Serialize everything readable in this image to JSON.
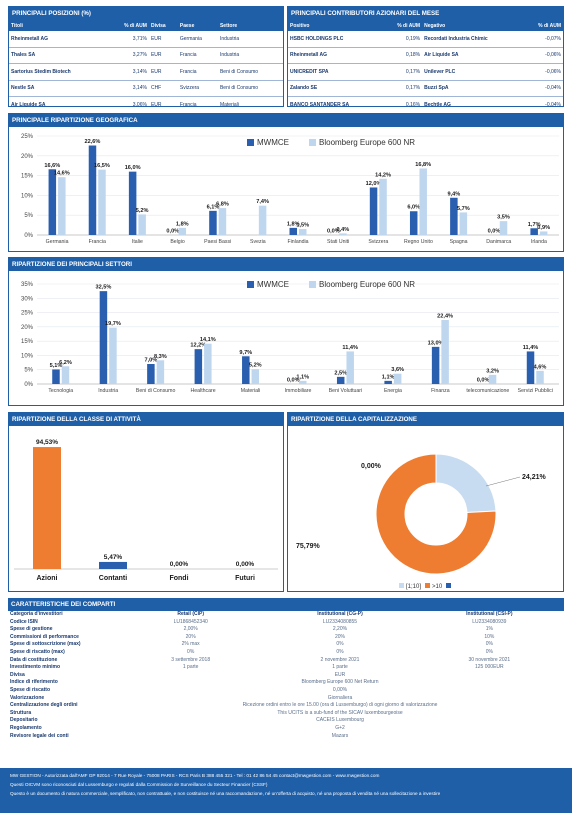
{
  "positions": {
    "title": "PRINCIPALI POSIZIONI (%)",
    "headers": [
      "Titoli",
      "% di AUM",
      "Divisa",
      "Paese",
      "Settore"
    ],
    "rows": [
      [
        "Rheinmetall AG",
        "3,71%",
        "EUR",
        "Germania",
        "Industria"
      ],
      [
        "Thales SA",
        "3,27%",
        "EUR",
        "Francia",
        "Industria"
      ],
      [
        "Sartorius Stedim Biotech",
        "3,14%",
        "EUR",
        "Francia",
        "Beni di Consumo"
      ],
      [
        "Nestle SA",
        "3,14%",
        "CHF",
        "Svizzera",
        "Beni di Consumo"
      ],
      [
        "Air Liquide SA",
        "3,06%",
        "EUR",
        "Francia",
        "Materiali"
      ]
    ]
  },
  "contributors": {
    "title": "PRINCIPALI CONTRIBUTORI AZIONARI DEL MESE",
    "headers": [
      "Positivo",
      "% di AUM",
      "Negativo",
      "% di AUM"
    ],
    "rows": [
      [
        "HSBC HOLDINGS PLC",
        "0,19%",
        "Recordati Industria Chimic",
        "-0,07%"
      ],
      [
        "Rheinmetall AG",
        "0,18%",
        "Air Liquide SA",
        "-0,06%"
      ],
      [
        "UNICREDIT SPA",
        "0,17%",
        "Unilever PLC",
        "-0,06%"
      ],
      [
        "Zalando SE",
        "0,17%",
        "Buzzi SpA",
        "-0,04%"
      ],
      [
        "BANCO SANTANDER SA",
        "0,16%",
        "Bechtle AG",
        "-0,04%"
      ]
    ]
  },
  "colors": {
    "navy": "#1f5fa8",
    "fund": "#2a5fb0",
    "bench": "#bfd6ef",
    "orange": "#ee7d31",
    "light": "#c7dcf0"
  },
  "geo": {
    "title": "PRINCIPALE RIPARTIZIONE GEOGRAFICA",
    "legend": [
      "MWMCE",
      "Bloomberg Europe 600 NR"
    ]
  },
  "sectors": {
    "title": "RIPARTIZIONE DEI PRINCIPALI SETTORI",
    "legend": [
      "MWMCE",
      "Bloomberg Europe 600 NR"
    ]
  },
  "assets": {
    "title": "RIPARTIZIONE DELLA CLASSE DI ATTIVITÀ"
  },
  "cap": {
    "title": "RIPARTIZIONE DELLA CAPITALIZZAZIONE",
    "legend": [
      "[1;10]",
      ">10",
      ""
    ]
  },
  "chart_data": [
    {
      "type": "bar",
      "categories": [
        "Germania",
        "Francia",
        "Italie",
        "Belgio",
        "Paesi Bassi",
        "Svezia",
        "Finlandia",
        "Stati Uniti",
        "Svizzera",
        "Regno Unito",
        "Spagna",
        "Danimarca",
        "Irlanda"
      ],
      "series": [
        {
          "name": "MWMCE",
          "values": [
            16.6,
            22.6,
            16.0,
            0.0,
            6.1,
            null,
            1.8,
            0.0,
            12.0,
            6.0,
            9.4,
            0.0,
            1.7
          ]
        },
        {
          "name": "Bloomberg Europe 600 NR",
          "values": [
            14.6,
            16.5,
            5.2,
            1.8,
            6.8,
            7.4,
            1.5,
            0.4,
            14.2,
            16.8,
            5.7,
            3.5,
            0.9
          ]
        }
      ],
      "labels": [
        [
          "16,6%",
          "22,6%",
          "16,0%",
          "0,0%",
          "6,1%",
          "",
          "1,8%",
          "0,0%",
          "12,0%",
          "6,0%",
          "9,4%",
          "0,0%",
          "1,7%"
        ],
        [
          "14,6%",
          "16,5%",
          "5,2%",
          "1,8%",
          "6,8%",
          "7,4%",
          "1,5%",
          "0,4%",
          "14,2%",
          "16,8%",
          "5,7%",
          "3,5%",
          "0,9%"
        ]
      ],
      "yticks": [
        "0%",
        "5%",
        "10%",
        "15%",
        "20%",
        "25%"
      ],
      "ylim": [
        0,
        25
      ]
    },
    {
      "type": "bar",
      "categories": [
        "Tecnologia",
        "Industria",
        "Beni di Consumo",
        "Healthcare",
        "Materiali",
        "Immobiliare",
        "Beni Voluttuari",
        "Energia",
        "Finanza",
        "telecomunicazione",
        "Servizi Pubblici"
      ],
      "series": [
        {
          "name": "MWMCE",
          "values": [
            5.1,
            32.5,
            7.0,
            12.2,
            9.7,
            0.0,
            2.5,
            1.1,
            13.0,
            0.0,
            11.4
          ]
        },
        {
          "name": "Bloomberg Europe 600 NR",
          "values": [
            6.2,
            19.7,
            8.3,
            14.1,
            5.2,
            1.1,
            11.4,
            3.6,
            22.4,
            3.2,
            4.6
          ]
        }
      ],
      "labels": [
        [
          "5,1%",
          "32,5%",
          "7,0%",
          "12,2%",
          "9,7%",
          "0,0%",
          "2,5%",
          "1,1%",
          "13,0%",
          "0,0%",
          "11,4%"
        ],
        [
          "6,2%",
          "19,7%",
          "8,3%",
          "14,1%",
          "5,2%",
          "1,1%",
          "11,4%",
          "3,6%",
          "22,4%",
          "3,2%",
          "4,6%"
        ]
      ],
      "yticks": [
        "0%",
        "5%",
        "10%",
        "15%",
        "20%",
        "25%",
        "30%",
        "35%"
      ],
      "ylim": [
        0,
        35
      ]
    },
    {
      "type": "bar",
      "categories": [
        "Azioni",
        "Contanti",
        "Fondi",
        "Futuri"
      ],
      "values": [
        94.53,
        5.47,
        0.0,
        0.0
      ],
      "labels": [
        "94,53%",
        "5,47%",
        "0,00%",
        "0,00%"
      ],
      "ylim": [
        0,
        100
      ]
    },
    {
      "type": "pie",
      "categories": [
        "[1;10]",
        ">10",
        ""
      ],
      "values": [
        24.21,
        75.79,
        0.0
      ],
      "labels": [
        "24,21%",
        "75,79%",
        "0,00%"
      ]
    }
  ],
  "caratteristiche": {
    "title": "CARATTERISTICHE DEI COMPARTI",
    "columns": [
      "Retail (CIP)",
      "Institutional (CG-P)",
      "Institutional (CSI-P)"
    ],
    "rows": [
      {
        "label": "Categoria d'investitori",
        "vals": [
          "Retail (CIP)",
          "Institutional (CG-P)",
          "Institutional (CSI-P)"
        ]
      },
      {
        "label": "Codice ISIN",
        "vals": [
          "LU1868452340",
          "LU2334080855",
          "LU2334080939"
        ]
      },
      {
        "label": "Spese di gestione",
        "vals": [
          "2,00%",
          "2,20%",
          "1%"
        ]
      },
      {
        "label": "Commissioni di performance",
        "vals": [
          "20%",
          "20%",
          "10%"
        ]
      },
      {
        "label": "Spese di sottoscrizione (max)",
        "vals": [
          "2% max",
          "0%",
          "0%"
        ]
      },
      {
        "label": "Spese di riscatto (max)",
        "vals": [
          "0%",
          "0%",
          "0%"
        ]
      },
      {
        "label": "Data di costituzione",
        "vals": [
          "3 settembre 2018",
          "2 novembre 2021",
          "30 novembre 2021"
        ]
      },
      {
        "label": "Investimento minimo",
        "vals": [
          "1 parte",
          "1 parte",
          "125 000EUR"
        ]
      }
    ],
    "shared": [
      {
        "label": "Divisa",
        "val": "EUR"
      },
      {
        "label": "Indice di riferimento",
        "val": "Bloomberg Europe 600 Net Return"
      },
      {
        "label": "Spese di riscatto",
        "val": "0,00%"
      },
      {
        "label": "Valorizzazione",
        "val": "Giornaliera"
      },
      {
        "label": "Centralizzazione degli ordini",
        "val": "Ricezione ordini entro le ore 15.00 (ora di Lussemburgo) di ogni giorno di valorizzazione"
      },
      {
        "label": "Struttura",
        "val": "This UCITS is a sub-fund of the SICAV luxembourgeoise"
      },
      {
        "label": "Depositario",
        "val": "CACEIS Luxembourg"
      },
      {
        "label": "Regolamento",
        "val": "G+2"
      },
      {
        "label": "Revisore legale dei conti",
        "val": "Mazars"
      }
    ]
  },
  "footer": {
    "line1": "MW GESTION - Autorizzata dall'AMF GP 92014 - 7 Rue Royale - 75008 PARIS - RCS Paris B 388 455 321 - Tel : 01 42 86 54 45 contact@mwgestion.com - www.mwgestion.com",
    "line2": "Questi OICVM sono riconosciuti dal Lussemburgo e regolati dalla Commission de Surveillance du Secteur Financier (CSSF)",
    "line3": "Questo è un documento di natura commerciale, semplificato, non contrattuale, e non costituisce né una raccomandazione, né un'offerta di acquisto, né una proposta di vendita né una sollecitazione a investire"
  }
}
